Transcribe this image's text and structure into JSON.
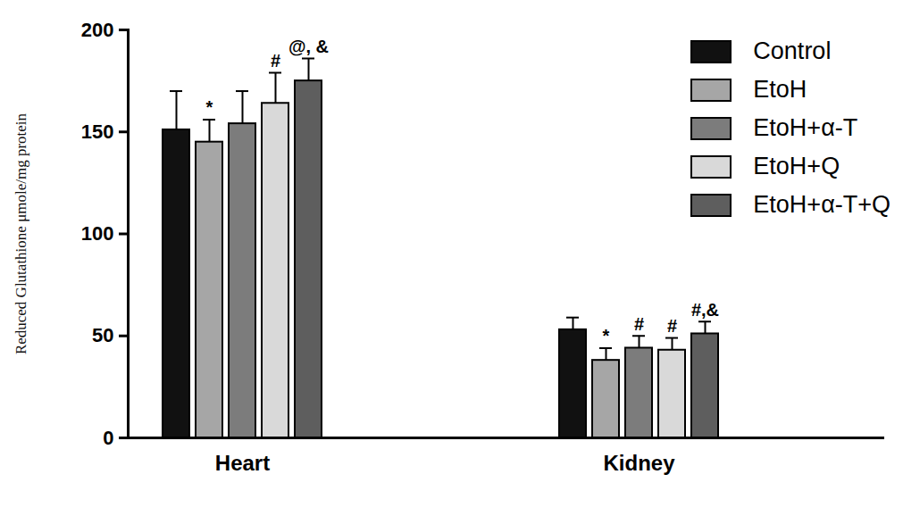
{
  "chart_data": {
    "type": "bar",
    "ylabel": "Reduced Glutathione μmole/mg protein",
    "categories": [
      "Heart",
      "Kidney"
    ],
    "series": [
      {
        "name": "Control",
        "color": "#111111",
        "values": [
          151,
          53
        ],
        "errors": [
          19,
          6
        ],
        "annotations": [
          null,
          null
        ]
      },
      {
        "name": "EtoH",
        "color": "#a6a6a6",
        "values": [
          145,
          38
        ],
        "errors": [
          11,
          6
        ],
        "annotations": [
          "*",
          "*"
        ]
      },
      {
        "name": "EtoH+α-T",
        "color": "#7c7c7c",
        "values": [
          154,
          44
        ],
        "errors": [
          16,
          6
        ],
        "annotations": [
          null,
          "#"
        ]
      },
      {
        "name": "EtoH+Q",
        "color": "#d9d9d9",
        "values": [
          164,
          43
        ],
        "errors": [
          15,
          6
        ],
        "annotations": [
          "#",
          "#"
        ]
      },
      {
        "name": "EtoH+α-T+Q",
        "color": "#5e5e5e",
        "values": [
          175,
          51
        ],
        "errors": [
          11,
          6
        ],
        "annotations": [
          "@, &",
          "#,&"
        ]
      }
    ],
    "ylim": [
      0,
      200
    ],
    "yticks": [
      0,
      50,
      100,
      150,
      200
    ],
    "legend": "top-right"
  }
}
